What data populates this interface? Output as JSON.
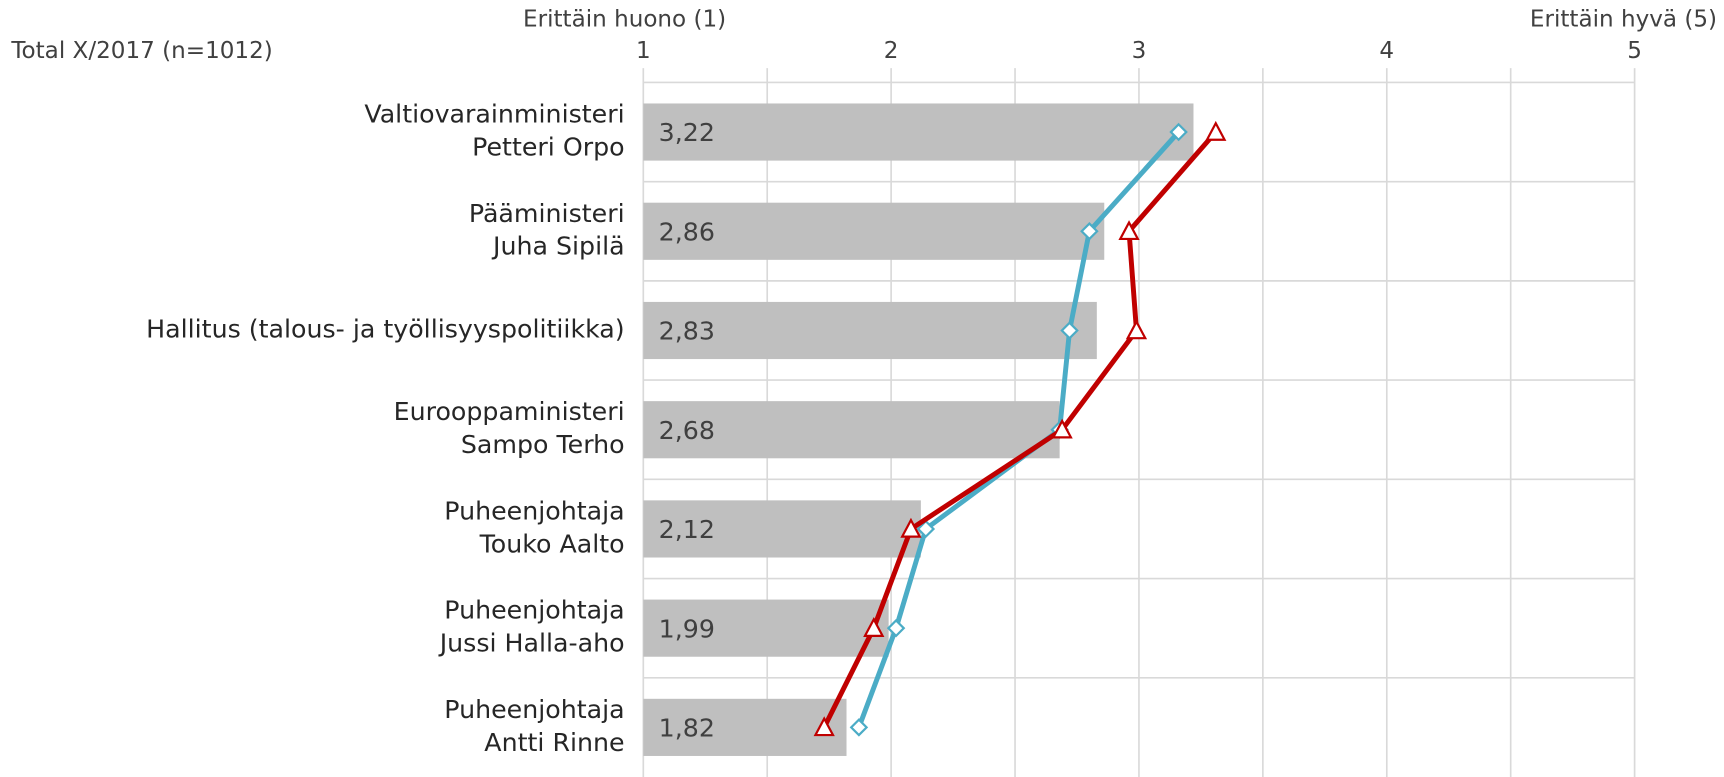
{
  "chart_data": {
    "type": "bar",
    "orientation": "horizontal",
    "subtitle": "Total X/2017  (n=1012)",
    "x_label_left": "Erittäin huono (1)",
    "x_label_right": "Erittäin hyvä (5)",
    "categories": [
      "Valtiovarainministeri\nPetteri Orpo",
      "Pääministeri\nJuha Sipilä",
      "Hallitus (talous- ja työllisyyspolitiikka)",
      "Eurooppaministeri\nSampo Terho",
      "Puheenjohtaja\nTouko Aalto",
      "Puheenjohtaja\nJussi Halla-aho",
      "Puheenjohtaja\nAntti Rinne"
    ],
    "values": [
      3.22,
      2.86,
      2.83,
      2.68,
      2.12,
      1.99,
      1.82
    ],
    "value_labels": [
      "3,22",
      "2,86",
      "2,83",
      "2,68",
      "2,12",
      "1,99",
      "1,82"
    ],
    "color": "#bfbfbf",
    "series": [
      {
        "color": "#4bacc6",
        "marker": "diamond",
        "values": [
          3.16,
          2.8,
          2.72,
          2.68,
          2.14,
          2.02,
          1.87
        ]
      },
      {
        "color": "#c00000",
        "marker": "triangle",
        "values": [
          3.31,
          2.96,
          2.99,
          2.69,
          2.08,
          1.93,
          1.73
        ]
      }
    ],
    "xlim": [
      1,
      5
    ],
    "xticks": [
      1,
      2,
      3,
      4,
      5
    ],
    "xgrid": [
      1,
      1.5,
      2,
      2.5,
      3,
      3.5,
      4,
      4.5,
      5
    ],
    "grid": true
  }
}
